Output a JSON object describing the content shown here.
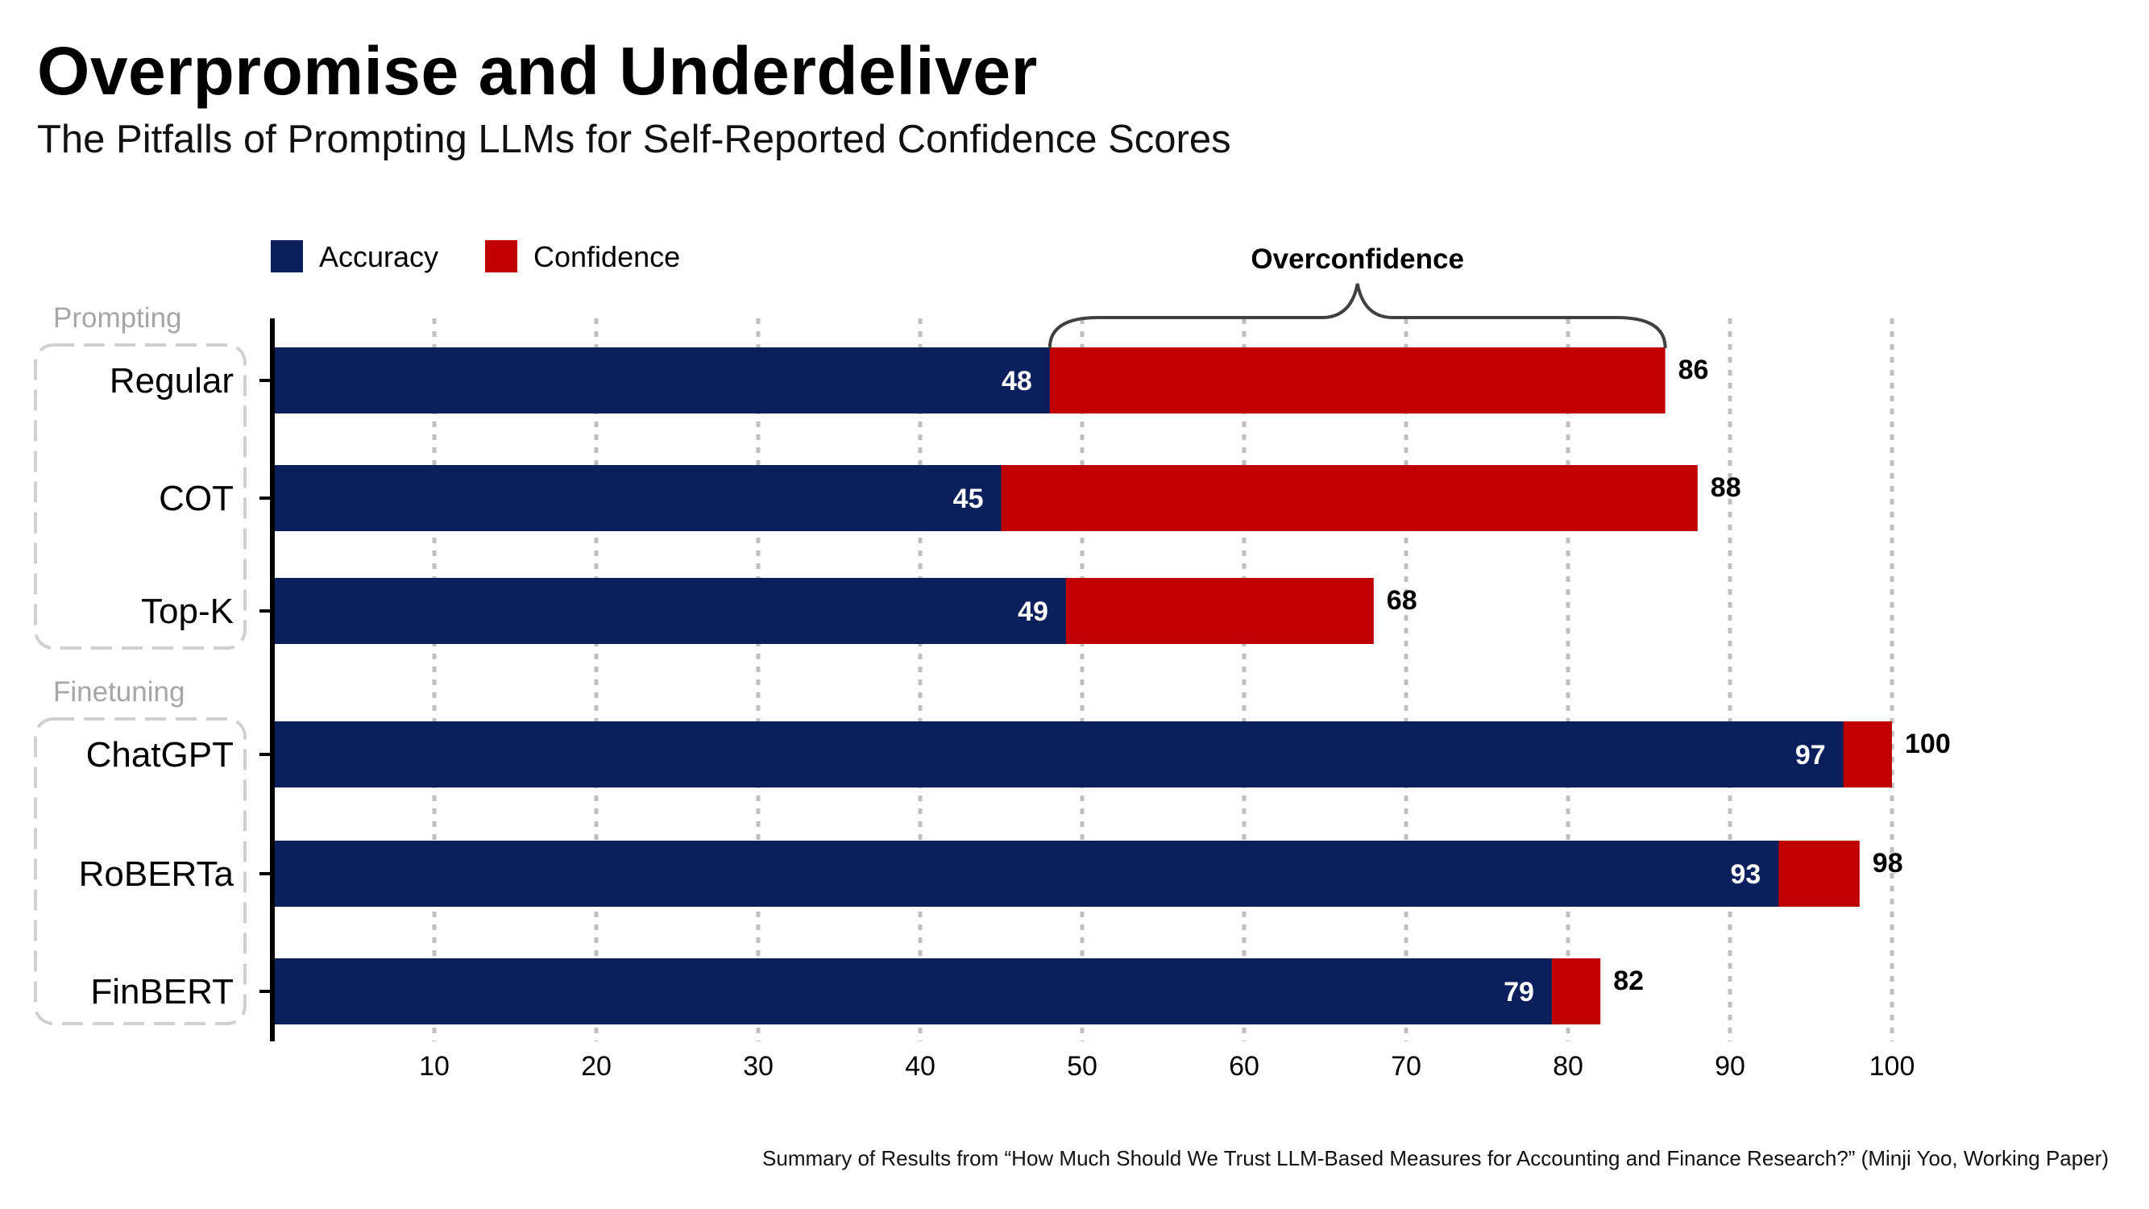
{
  "header": {
    "title": "Overpromise and Underdeliver",
    "subtitle": "The Pitfalls of Prompting LLMs for Self-Reported Confidence Scores"
  },
  "footnote": "Summary of Results from “How Much Should We Trust LLM-Based Measures for Accounting and Finance Research?” (Minji Yoo, Working Paper)",
  "colors": {
    "accuracy": "#0a1f5c",
    "confidence": "#c00000",
    "grid": "#bfbfbf",
    "group_box": "#d0d0d0"
  },
  "chart_data": {
    "type": "bar",
    "orientation": "horizontal",
    "stacked": "overlay",
    "categories": [
      "Regular",
      "COT",
      "Top-K",
      "ChatGPT",
      "RoBERTa",
      "FinBERT"
    ],
    "groups": [
      {
        "label": "Prompting",
        "categories": [
          "Regular",
          "COT",
          "Top-K"
        ]
      },
      {
        "label": "Finetuning",
        "categories": [
          "ChatGPT",
          "RoBERTa",
          "FinBERT"
        ]
      }
    ],
    "series": [
      {
        "name": "Accuracy",
        "values": [
          48,
          45,
          49,
          97,
          93,
          79
        ]
      },
      {
        "name": "Confidence",
        "values": [
          86,
          88,
          68,
          100,
          98,
          82
        ]
      }
    ],
    "x_ticks": [
      10,
      20,
      30,
      40,
      50,
      60,
      70,
      80,
      90,
      100
    ],
    "xlim": [
      0,
      100
    ],
    "grid": "vertical dotted",
    "legend_position": "top-left",
    "annotation": {
      "text": "Overconfidence",
      "category": "Regular",
      "from": 48,
      "to": 86
    }
  }
}
